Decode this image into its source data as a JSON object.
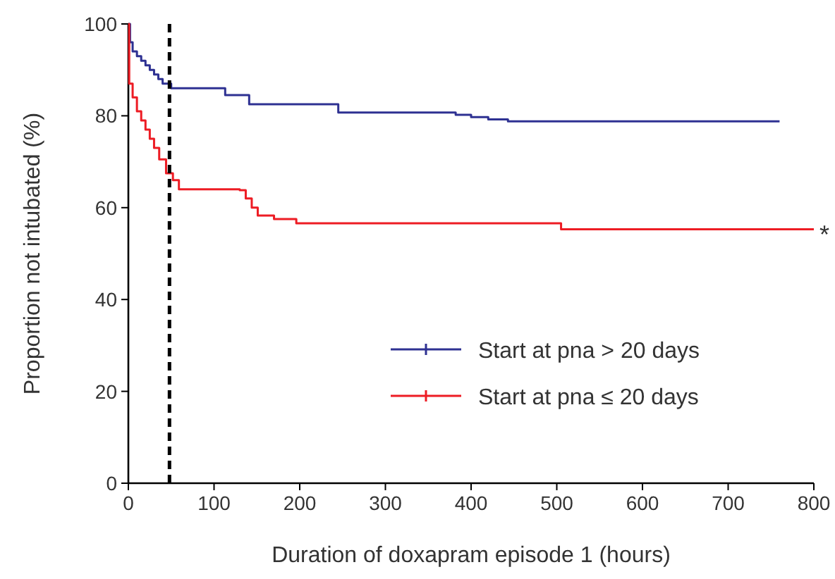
{
  "chart_data": {
    "type": "step",
    "xlabel": "Duration of doxapram episode 1 (hours)",
    "ylabel": "Proportion not intubated (%)",
    "xlim": [
      0,
      800
    ],
    "xticks": [
      0,
      100,
      200,
      300,
      400,
      500,
      600,
      700,
      800
    ],
    "ylim": [
      0,
      100
    ],
    "yticks": [
      0,
      20,
      40,
      60,
      80,
      100
    ],
    "grid": false,
    "legend": "bottom right",
    "line_style": "solid",
    "series": [
      {
        "name": "Start at pna > 20 days",
        "color": "#2e3192",
        "x": [
          0,
          2,
          5,
          10,
          15,
          20,
          25,
          30,
          35,
          40,
          50,
          113,
          141,
          245,
          382,
          400,
          420,
          443,
          760
        ],
        "values": [
          100,
          96,
          94,
          93,
          92,
          91,
          90,
          89,
          88,
          87,
          86,
          84.5,
          82.5,
          80.7,
          80.2,
          79.7,
          79.2,
          78.8,
          78.8
        ]
      },
      {
        "name": "Start at pna ≤ 20 days",
        "color": "#ed1c24",
        "x": [
          0,
          1,
          5,
          10,
          15,
          20,
          25,
          30,
          36,
          44,
          52,
          59,
          130,
          137,
          144,
          151,
          170,
          196,
          479,
          505,
          800
        ],
        "values": [
          100,
          87,
          84,
          81,
          79,
          77,
          75,
          73,
          70.5,
          67.5,
          66,
          64,
          63.8,
          62,
          60,
          58.3,
          57.5,
          56.6,
          56.6,
          55.3,
          55.3
        ]
      }
    ],
    "ref_lines": [
      {
        "axis": "x",
        "value": 48,
        "color": "#000000",
        "line_style": "dashed"
      }
    ],
    "annotations": [
      {
        "text": "*",
        "x": 800,
        "y": 55.3
      }
    ]
  }
}
